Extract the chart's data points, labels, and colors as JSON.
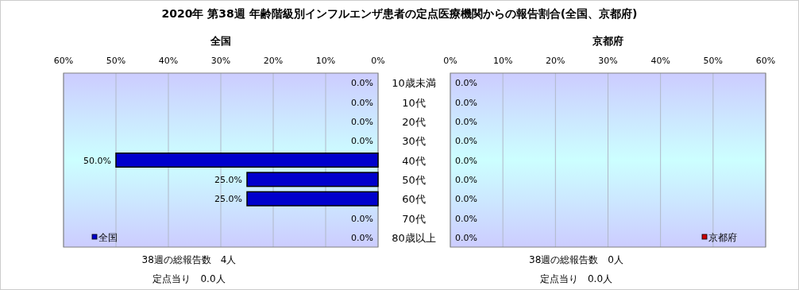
{
  "chart_data": [
    {
      "type": "bar",
      "orientation": "horizontal",
      "title": "2020年 第38週 年齢階級別インフルエンザ患者の定点医療機関からの報告割合(全国、京都府)",
      "subtitle": "全国",
      "categories": [
        "10歳未満",
        "10代",
        "20代",
        "30代",
        "40代",
        "50代",
        "60代",
        "70代",
        "80歳以上"
      ],
      "series": [
        {
          "name": "全国",
          "color": "#0000cc",
          "values": [
            0,
            0,
            0,
            0,
            50,
            25,
            25,
            0,
            0
          ],
          "value_labels": [
            "0.0%",
            "0.0%",
            "0.0%",
            "0.0%",
            "50.0%",
            "25.0%",
            "25.0%",
            "0.0%",
            "0.0%"
          ]
        }
      ],
      "xlim": [
        60,
        0
      ],
      "xticks": [
        {
          "value": 60,
          "label": "60%"
        },
        {
          "value": 50,
          "label": "50%"
        },
        {
          "value": 40,
          "label": "40%"
        },
        {
          "value": 30,
          "label": "30%"
        },
        {
          "value": 20,
          "label": "20%"
        },
        {
          "value": 10,
          "label": "10%"
        },
        {
          "value": 0,
          "label": "0%"
        }
      ],
      "grid": "x",
      "legend": "bottom left",
      "annotations": [
        "38週の総報告数　4人",
        "定点当り　0.0人"
      ]
    },
    {
      "type": "bar",
      "orientation": "horizontal",
      "subtitle": "京都府",
      "categories": [
        null,
        null,
        null,
        null,
        null,
        null,
        null,
        null,
        null
      ],
      "series": [
        {
          "name": "京都府",
          "color": "#cc0000",
          "values": [
            0,
            0,
            0,
            0,
            0,
            0,
            0,
            0,
            0
          ],
          "value_labels": [
            "0.0%",
            "0.0%",
            "0.0%",
            "0.0%",
            "0.0%",
            "0.0%",
            "0.0%",
            "0.0%",
            "0.0%"
          ]
        }
      ],
      "xlim": [
        0,
        60
      ],
      "xticks": [
        {
          "value": 0,
          "label": "0%"
        },
        {
          "value": 10,
          "label": "10%"
        },
        {
          "value": 20,
          "label": "20%"
        },
        {
          "value": 30,
          "label": "30%"
        },
        {
          "value": 40,
          "label": "40%"
        },
        {
          "value": 50,
          "label": "50%"
        },
        {
          "value": 60,
          "label": "60%"
        }
      ],
      "grid": "x",
      "legend": "bottom right",
      "tick_labels": "x",
      "annotations": [
        "38週の総報告数　0人",
        "定点当り　0.0人"
      ]
    }
  ]
}
